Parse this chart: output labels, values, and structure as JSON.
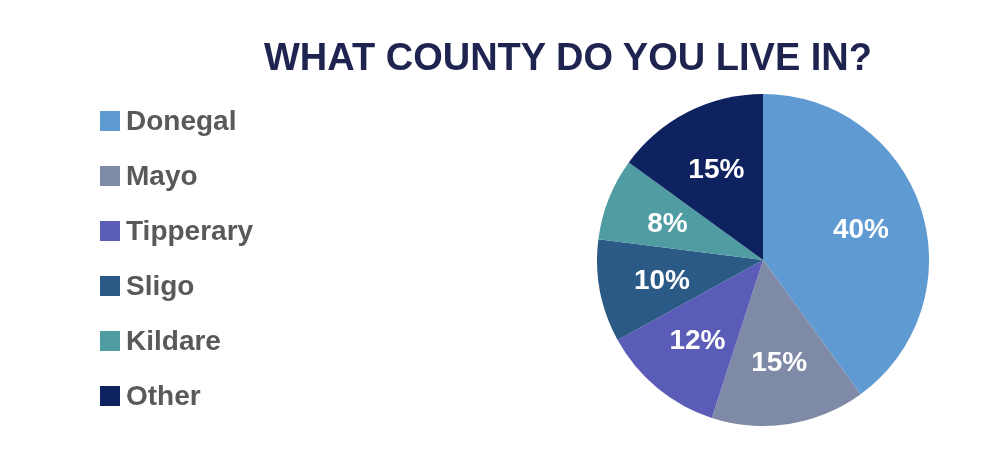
{
  "chart_data": {
    "type": "pie",
    "title": "WHAT COUNTY DO YOU LIVE IN?",
    "categories": [
      "Donegal",
      "Mayo",
      "Tipperary",
      "Sligo",
      "Kildare",
      "Other"
    ],
    "values": [
      40,
      15,
      12,
      10,
      8,
      15
    ],
    "value_labels": [
      "40%",
      "15%",
      "12%",
      "10%",
      "8%",
      "15%"
    ],
    "colors": [
      "#5f9bd2",
      "#7f8aa6",
      "#5a5cb8",
      "#2b5a86",
      "#4f9ca2",
      "#0f2260"
    ],
    "legend": "left"
  }
}
